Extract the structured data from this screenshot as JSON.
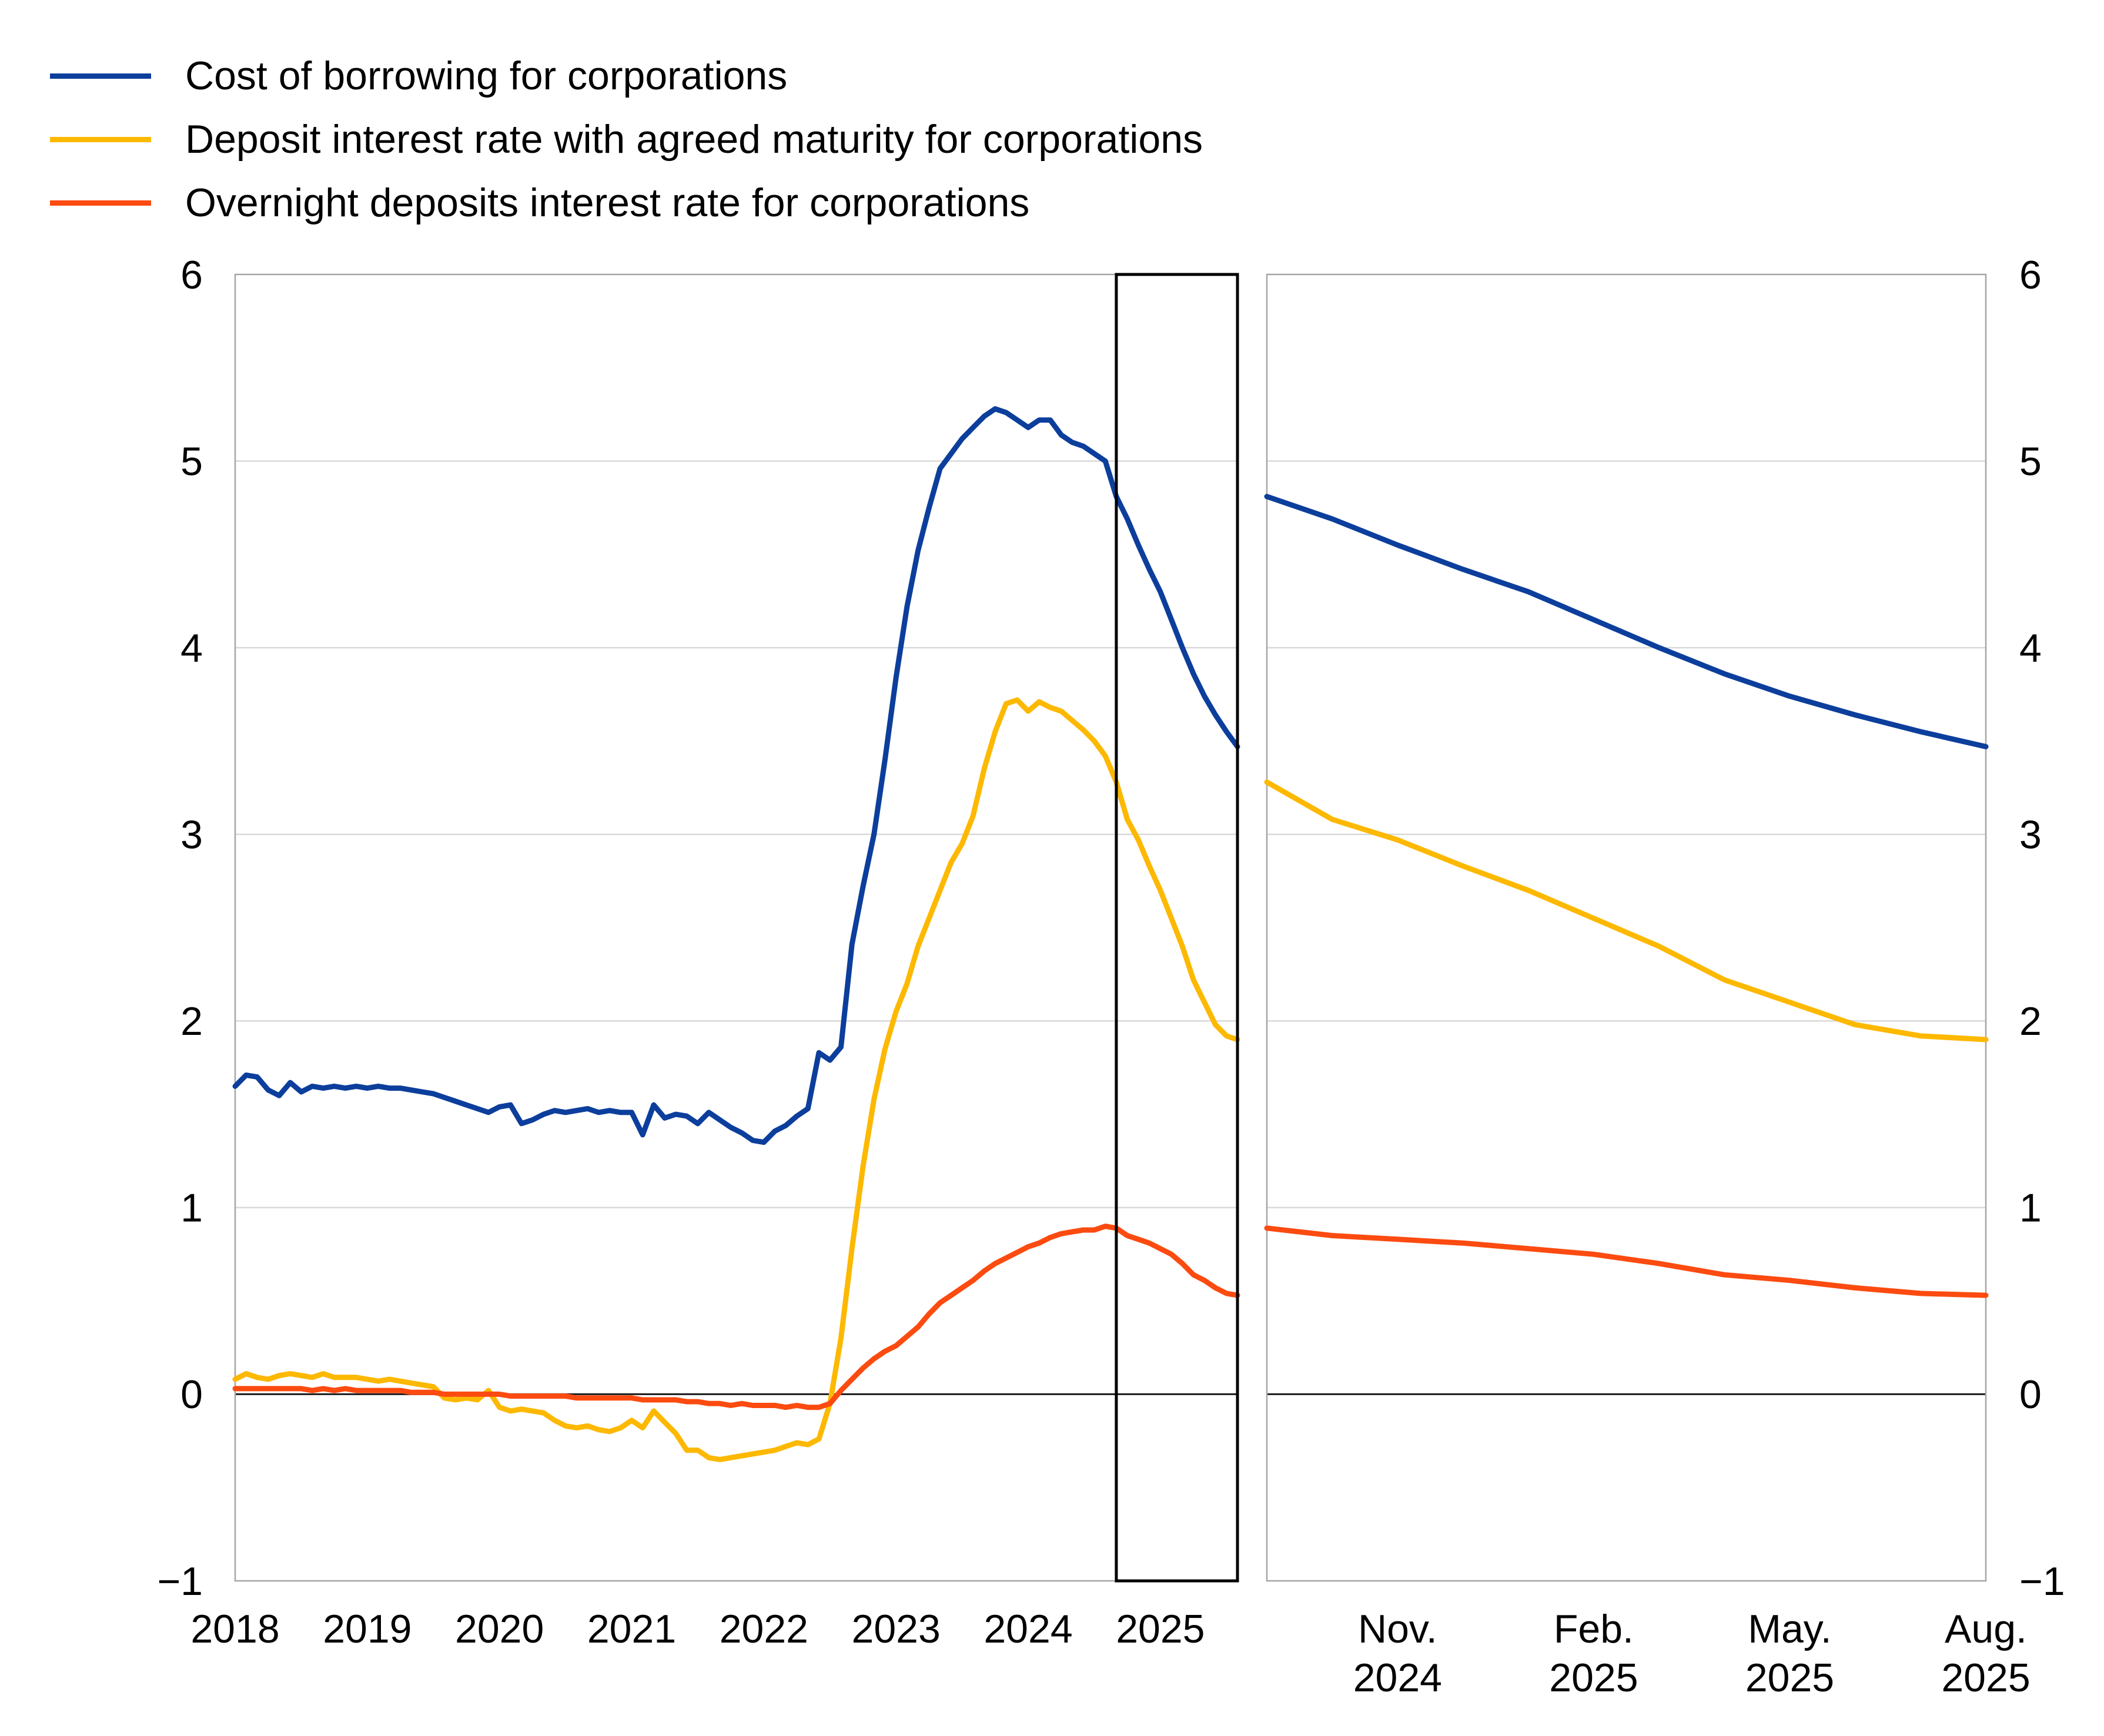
{
  "legend": {
    "items": [
      {
        "id": "cost-of-borrowing",
        "label": "Cost of borrowing for corporations",
        "color": "#0c3e9c"
      },
      {
        "id": "deposit-agreed-maturity",
        "label": "Deposit interest rate with agreed maturity for corporations",
        "color": "#fdb800"
      },
      {
        "id": "overnight-deposits",
        "label": "Overnight deposits interest rate for corporations",
        "color": "#fc4b10"
      }
    ]
  },
  "chart_data": {
    "type": "line",
    "title": "",
    "xlabel": "",
    "ylabel": "",
    "ylim": [
      -1,
      6
    ],
    "grid": true,
    "legend_position": "top-left",
    "y_ticks": [
      {
        "value": 6,
        "label": "6"
      },
      {
        "value": 5,
        "label": "5"
      },
      {
        "value": 4,
        "label": "4"
      },
      {
        "value": 3,
        "label": "3"
      },
      {
        "value": 2,
        "label": "2"
      },
      {
        "value": 1,
        "label": "1"
      },
      {
        "value": 0,
        "label": "0"
      },
      {
        "value": -1,
        "label": "−1"
      }
    ],
    "styles": {
      "gridline_color": "#d9d9d9",
      "border_color": "#a6a6a6",
      "zero_line_color": "#1a1a1a",
      "highlight_box_color": "#000000",
      "label_color": "#000000"
    },
    "panels": [
      {
        "id": "history",
        "x_start": "2018-01",
        "x_end": "2025-08",
        "x_tick_labels": [
          "2018",
          "2019",
          "2020",
          "2021",
          "2022",
          "2023",
          "2024",
          "2025"
        ],
        "highlight_box": {
          "start_index": 80,
          "end_index": 91
        },
        "series": [
          {
            "name": "Cost of borrowing for corporations",
            "color": "#0c3e9c",
            "values": [
              1.65,
              1.71,
              1.7,
              1.63,
              1.6,
              1.67,
              1.62,
              1.65,
              1.64,
              1.65,
              1.64,
              1.65,
              1.64,
              1.65,
              1.64,
              1.64,
              1.63,
              1.62,
              1.61,
              1.59,
              1.57,
              1.55,
              1.53,
              1.51,
              1.54,
              1.55,
              1.45,
              1.47,
              1.5,
              1.52,
              1.51,
              1.52,
              1.53,
              1.51,
              1.52,
              1.51,
              1.51,
              1.39,
              1.55,
              1.48,
              1.5,
              1.49,
              1.45,
              1.51,
              1.47,
              1.43,
              1.4,
              1.36,
              1.35,
              1.41,
              1.44,
              1.49,
              1.53,
              1.83,
              1.79,
              1.86,
              2.41,
              2.72,
              3.0,
              3.4,
              3.84,
              4.22,
              4.52,
              4.75,
              4.96,
              5.04,
              5.12,
              5.18,
              5.24,
              5.28,
              5.26,
              5.22,
              5.18,
              5.22,
              5.22,
              5.14,
              5.1,
              5.08,
              5.04,
              5.0,
              4.81,
              4.69,
              4.55,
              4.42,
              4.3,
              4.15,
              4.0,
              3.86,
              3.74,
              3.64,
              3.55,
              3.47
            ]
          },
          {
            "name": "Deposit interest rate with agreed maturity for corporations",
            "color": "#fdb800",
            "values": [
              0.08,
              0.11,
              0.09,
              0.08,
              0.1,
              0.11,
              0.1,
              0.09,
              0.11,
              0.09,
              0.09,
              0.09,
              0.08,
              0.07,
              0.08,
              0.07,
              0.06,
              0.05,
              0.04,
              -0.02,
              -0.03,
              -0.02,
              -0.03,
              0.02,
              -0.07,
              -0.09,
              -0.08,
              -0.09,
              -0.1,
              -0.14,
              -0.17,
              -0.18,
              -0.17,
              -0.19,
              -0.2,
              -0.18,
              -0.14,
              -0.18,
              -0.09,
              -0.15,
              -0.21,
              -0.3,
              -0.3,
              -0.34,
              -0.35,
              -0.34,
              -0.33,
              -0.32,
              -0.31,
              -0.3,
              -0.28,
              -0.26,
              -0.27,
              -0.24,
              -0.05,
              0.3,
              0.78,
              1.22,
              1.58,
              1.85,
              2.05,
              2.2,
              2.4,
              2.55,
              2.7,
              2.85,
              2.95,
              3.1,
              3.35,
              3.55,
              3.7,
              3.72,
              3.66,
              3.71,
              3.68,
              3.66,
              3.61,
              3.56,
              3.5,
              3.42,
              3.28,
              3.08,
              2.97,
              2.83,
              2.7,
              2.55,
              2.4,
              2.22,
              2.1,
              1.98,
              1.92,
              1.9
            ]
          },
          {
            "name": "Overnight deposits interest rate for corporations",
            "color": "#fc4b10",
            "values": [
              0.03,
              0.03,
              0.03,
              0.03,
              0.03,
              0.03,
              0.03,
              0.02,
              0.03,
              0.02,
              0.03,
              0.02,
              0.02,
              0.02,
              0.02,
              0.02,
              0.01,
              0.01,
              0.01,
              0.0,
              0.0,
              0.0,
              0.0,
              0.0,
              0.0,
              -0.01,
              -0.01,
              -0.01,
              -0.01,
              -0.01,
              -0.01,
              -0.02,
              -0.02,
              -0.02,
              -0.02,
              -0.02,
              -0.02,
              -0.03,
              -0.03,
              -0.03,
              -0.03,
              -0.04,
              -0.04,
              -0.05,
              -0.05,
              -0.06,
              -0.05,
              -0.06,
              -0.06,
              -0.06,
              -0.07,
              -0.06,
              -0.07,
              -0.07,
              -0.05,
              0.02,
              0.08,
              0.14,
              0.19,
              0.23,
              0.26,
              0.31,
              0.36,
              0.43,
              0.49,
              0.53,
              0.57,
              0.61,
              0.66,
              0.7,
              0.73,
              0.76,
              0.79,
              0.81,
              0.84,
              0.86,
              0.87,
              0.88,
              0.88,
              0.9,
              0.89,
              0.85,
              0.83,
              0.81,
              0.78,
              0.75,
              0.7,
              0.64,
              0.61,
              0.57,
              0.54,
              0.53
            ]
          }
        ]
      },
      {
        "id": "recent-detail",
        "x_start": "2024-09",
        "x_end": "2025-08",
        "x_ticks": [
          {
            "index": 2,
            "line1": "Nov.",
            "line2": "2024"
          },
          {
            "index": 5,
            "line1": "Feb.",
            "line2": "2025"
          },
          {
            "index": 8,
            "line1": "May.",
            "line2": "2025"
          },
          {
            "index": 11,
            "line1": "Aug.",
            "line2": "2025"
          }
        ],
        "series": [
          {
            "name": "Cost of borrowing for corporations",
            "color": "#0c3e9c",
            "values": [
              4.81,
              4.69,
              4.55,
              4.42,
              4.3,
              4.15,
              4.0,
              3.86,
              3.74,
              3.64,
              3.55,
              3.47
            ]
          },
          {
            "name": "Deposit interest rate with agreed maturity for corporations",
            "color": "#fdb800",
            "values": [
              3.28,
              3.08,
              2.97,
              2.83,
              2.7,
              2.55,
              2.4,
              2.22,
              2.1,
              1.98,
              1.92,
              1.9
            ]
          },
          {
            "name": "Overnight deposits interest rate for corporations",
            "color": "#fc4b10",
            "values": [
              0.89,
              0.85,
              0.83,
              0.81,
              0.78,
              0.75,
              0.7,
              0.64,
              0.61,
              0.57,
              0.54,
              0.53
            ]
          }
        ]
      }
    ]
  }
}
